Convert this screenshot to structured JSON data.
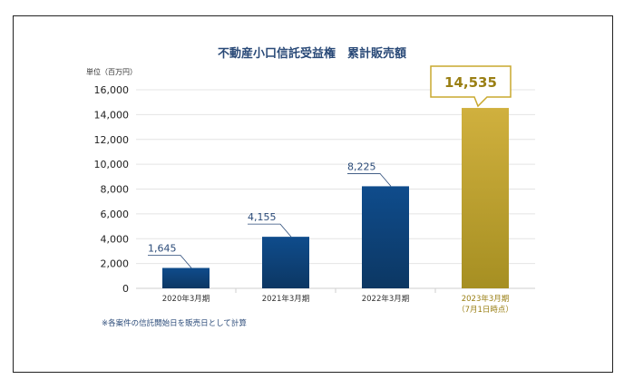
{
  "chart_data": {
    "type": "bar",
    "title": "不動産小口信託受益権　累計販売額",
    "ylabel": "単位（百万円）",
    "xlabel": "",
    "ylim": [
      0,
      16000
    ],
    "yticks": [
      "0",
      "2,000",
      "4,000",
      "6,000",
      "8,000",
      "10,000",
      "12,000",
      "14,000",
      "16,000"
    ],
    "categories": [
      [
        "2020年3月期"
      ],
      [
        "2021年3月期"
      ],
      [
        "2022年3月期"
      ],
      [
        "2023年3月期",
        "（7月1日時点）"
      ]
    ],
    "values": [
      1645,
      4155,
      8225,
      14535
    ],
    "value_labels": [
      "1,645",
      "4,155",
      "8,225",
      "14,535"
    ],
    "highlight_index": 3,
    "colors": {
      "navy_top": "#0f4c8c",
      "navy_bottom": "#0c3763",
      "gold_top": "#d0b03e",
      "gold_bottom": "#a68f22",
      "callout_border": "#c9a92e",
      "grid": "#e4e4e4",
      "label_line": "#2a4a78"
    }
  },
  "note": "※各案件の信託開始日を販売日として計算"
}
